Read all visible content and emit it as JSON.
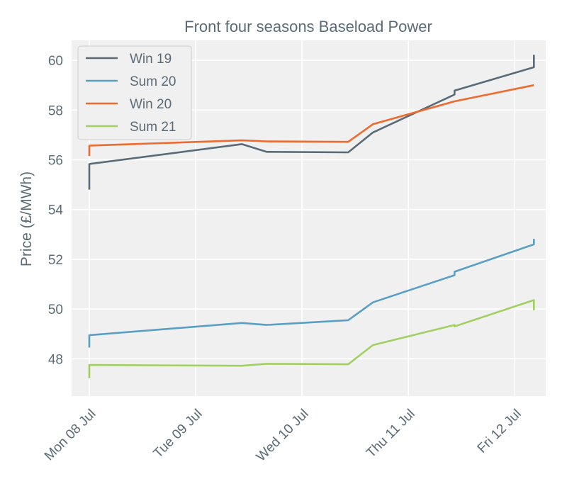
{
  "chart_data": {
    "type": "line",
    "title": "Front four seasons Baseload Power",
    "xlabel": "",
    "ylabel": "Price (£/MWh)",
    "ylim": [
      46.5,
      60.8
    ],
    "yticks": [
      48,
      50,
      52,
      54,
      56,
      58,
      60
    ],
    "xlim": [
      "2019-07-07 20:00",
      "2019-07-12 07:00"
    ],
    "xticks": [
      {
        "x": "2019-07-08 00:00",
        "label": "Mon 08 Jul"
      },
      {
        "x": "2019-07-09 00:00",
        "label": "Tue 09 Jul"
      },
      {
        "x": "2019-07-10 00:00",
        "label": "Wed 10 Jul"
      },
      {
        "x": "2019-07-11 00:00",
        "label": "Thu 11 Jul"
      },
      {
        "x": "2019-07-12 00:00",
        "label": "Fri 12 Jul"
      }
    ],
    "grid": true,
    "legend_position": "upper-left",
    "series": [
      {
        "name": "Win 19",
        "color": "#5a6b78",
        "points": [
          [
            "2019-07-08 00:00",
            54.8
          ],
          [
            "2019-07-08 00:00",
            55.83
          ],
          [
            "2019-07-09 10:25",
            56.63
          ],
          [
            "2019-07-09 16:00",
            56.32
          ],
          [
            "2019-07-10 10:25",
            56.3
          ],
          [
            "2019-07-10 16:00",
            57.1
          ],
          [
            "2019-07-11 10:25",
            58.62
          ],
          [
            "2019-07-11 10:25",
            58.78
          ],
          [
            "2019-07-12 04:20",
            59.72
          ],
          [
            "2019-07-12 04:20",
            60.22
          ]
        ]
      },
      {
        "name": "Sum 20",
        "color": "#5a9fc3",
        "points": [
          [
            "2019-07-08 00:00",
            48.45
          ],
          [
            "2019-07-08 00:00",
            48.95
          ],
          [
            "2019-07-09 10:25",
            49.44
          ],
          [
            "2019-07-09 16:00",
            49.36
          ],
          [
            "2019-07-10 10:25",
            49.55
          ],
          [
            "2019-07-10 16:00",
            50.27
          ],
          [
            "2019-07-11 10:25",
            51.36
          ],
          [
            "2019-07-11 10:25",
            51.5
          ],
          [
            "2019-07-12 04:20",
            52.6
          ],
          [
            "2019-07-12 04:20",
            52.82
          ]
        ]
      },
      {
        "name": "Win 20",
        "color": "#ee6a2d",
        "points": [
          [
            "2019-07-08 00:00",
            56.15
          ],
          [
            "2019-07-08 00:00",
            56.57
          ],
          [
            "2019-07-09 10:25",
            56.78
          ],
          [
            "2019-07-09 16:00",
            56.74
          ],
          [
            "2019-07-10 10:25",
            56.72
          ],
          [
            "2019-07-10 16:00",
            57.43
          ],
          [
            "2019-07-11 10:25",
            58.35
          ],
          [
            "2019-07-11 10:25",
            58.35
          ],
          [
            "2019-07-12 04:20",
            59.0
          ],
          [
            "2019-07-12 04:20",
            59.0
          ]
        ]
      },
      {
        "name": "Sum 21",
        "color": "#a2cf62",
        "points": [
          [
            "2019-07-08 00:00",
            47.22
          ],
          [
            "2019-07-08 00:00",
            47.75
          ],
          [
            "2019-07-09 10:25",
            47.72
          ],
          [
            "2019-07-09 16:00",
            47.8
          ],
          [
            "2019-07-10 10:25",
            47.78
          ],
          [
            "2019-07-10 16:00",
            48.55
          ],
          [
            "2019-07-11 10:25",
            49.36
          ],
          [
            "2019-07-11 10:25",
            49.3
          ],
          [
            "2019-07-12 04:20",
            50.36
          ],
          [
            "2019-07-12 04:20",
            49.95
          ]
        ]
      }
    ]
  }
}
